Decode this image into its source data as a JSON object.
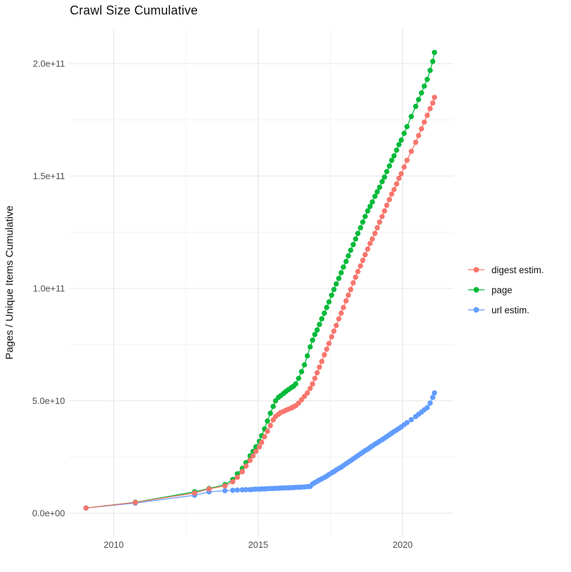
{
  "title": "Crawl Size Cumulative",
  "axes": {
    "y_label": "Pages / Unique Items Cumulative",
    "x_label": "",
    "y_ticks": [
      {
        "label": "0.0e+00",
        "value_e9": 0
      },
      {
        "label": "5.0e+10",
        "value_e9": 50
      },
      {
        "label": "1.0e+11",
        "value_e9": 100
      },
      {
        "label": "1.5e+11",
        "value_e9": 150
      },
      {
        "label": "2.0e+11",
        "value_e9": 200
      }
    ],
    "x_ticks": [
      {
        "label": "2010",
        "value": 2010
      },
      {
        "label": "2015",
        "value": 2015
      },
      {
        "label": "2020",
        "value": 2020
      }
    ],
    "y_minor_e9": [
      25,
      75,
      125,
      175
    ],
    "x_minor": [
      2012.5,
      2017.5
    ]
  },
  "legend": {
    "items": [
      {
        "label": "digest estim.",
        "color": "#F8766D"
      },
      {
        "label": "page",
        "color": "#00BA38"
      },
      {
        "label": "url estim.",
        "color": "#619CFF"
      }
    ]
  },
  "colors": {
    "digest": "#F8766D",
    "page": "#00BA38",
    "url": "#619CFF",
    "grid_major": "#e6e6e6",
    "grid_minor": "#f2f2f2",
    "tick_text": "#4d4d4d",
    "text": "#111111"
  },
  "chart_data": {
    "type": "line",
    "title": "Crawl Size Cumulative",
    "xlabel": "",
    "ylabel": "Pages / Unique Items Cumulative",
    "legend_position": "right",
    "grid": true,
    "y_value_unit": 1000000000,
    "y_value_unit_note": "series values below are in billions (1e9) of pages / unique items",
    "xlim": [
      2008.45,
      2021.75
    ],
    "ylim_e9": [
      -10,
      216
    ],
    "x_years": [
      2009.04,
      2010.75,
      2012.8,
      2013.3,
      2013.85,
      2014.12,
      2014.28,
      2014.45,
      2014.58,
      2014.72,
      2014.82,
      2014.92,
      2015.04,
      2015.12,
      2015.22,
      2015.32,
      2015.42,
      2015.52,
      2015.6,
      2015.7,
      2015.78,
      2015.88,
      2015.96,
      2016.05,
      2016.14,
      2016.22,
      2016.3,
      2016.4,
      2016.5,
      2016.6,
      2016.7,
      2016.8,
      2016.88,
      2016.96,
      2017.04,
      2017.12,
      2017.2,
      2017.29,
      2017.37,
      2017.45,
      2017.54,
      2017.62,
      2017.7,
      2017.79,
      2017.87,
      2017.95,
      2018.04,
      2018.12,
      2018.2,
      2018.29,
      2018.37,
      2018.45,
      2018.54,
      2018.62,
      2018.7,
      2018.79,
      2018.87,
      2018.95,
      2019.04,
      2019.12,
      2019.2,
      2019.29,
      2019.37,
      2019.45,
      2019.54,
      2019.62,
      2019.7,
      2019.79,
      2019.87,
      2019.95,
      2020.05,
      2020.15,
      2020.3,
      2020.45,
      2020.55,
      2020.65,
      2020.75,
      2020.85,
      2020.95,
      2021.04,
      2021.1
    ],
    "series": [
      {
        "name": "digest estim.",
        "color": "#F8766D",
        "values_e9": [
          2.3,
          4.8,
          9,
          10.8,
          12.2,
          14,
          16,
          18.5,
          21,
          23.5,
          25.5,
          27.5,
          29.5,
          31.5,
          34,
          36.5,
          39,
          41.5,
          43,
          44,
          44.8,
          45.3,
          45.8,
          46.3,
          46.8,
          47.3,
          47.8,
          49,
          50.5,
          52,
          53.5,
          55.5,
          57.5,
          60,
          62.5,
          65,
          67.5,
          70.5,
          73,
          75.5,
          78.5,
          81,
          83.5,
          86.5,
          89,
          91.5,
          94.5,
          97,
          99.5,
          102.5,
          105,
          107.5,
          110,
          112.5,
          115,
          117.5,
          120,
          122,
          124.5,
          127,
          129.5,
          132,
          134.5,
          137,
          139.5,
          142,
          144,
          146.5,
          149,
          151,
          154,
          157,
          161,
          165,
          168,
          171,
          174,
          177,
          180,
          182.5,
          185
        ]
      },
      {
        "name": "page",
        "color": "#00BA38",
        "values_e9": [
          2.3,
          4.9,
          9.5,
          11,
          12.7,
          15,
          17.5,
          20,
          22.5,
          25.5,
          27.5,
          29.5,
          32,
          34.5,
          37.5,
          41,
          44.5,
          47.5,
          50,
          51.5,
          52.3,
          53.3,
          54.2,
          55,
          55.8,
          56.5,
          57.5,
          60,
          63,
          66,
          70,
          74,
          77,
          79.5,
          81.5,
          84,
          86.5,
          89,
          91.5,
          94,
          97,
          99.5,
          102,
          104.5,
          107,
          109.5,
          112,
          114.5,
          117,
          119.5,
          122,
          124.5,
          127,
          129.5,
          132,
          134.5,
          136.5,
          138.5,
          141,
          143,
          145,
          147.5,
          149.5,
          152,
          154.5,
          157,
          159,
          161.5,
          164,
          166,
          169,
          172,
          176.5,
          181,
          184,
          187,
          190,
          193,
          197,
          201,
          205
        ]
      },
      {
        "name": "url estim.",
        "color": "#619CFF",
        "values_e9": [
          2.3,
          4.5,
          8,
          9.5,
          10,
          10.2,
          10.3,
          10.4,
          10.5,
          10.5,
          10.6,
          10.7,
          10.7,
          10.8,
          10.8,
          10.9,
          11,
          11,
          11.1,
          11.1,
          11.2,
          11.2,
          11.3,
          11.3,
          11.4,
          11.4,
          11.5,
          11.5,
          11.6,
          11.7,
          11.8,
          11.9,
          13,
          13.6,
          14.2,
          14.8,
          15.3,
          15.9,
          16.5,
          17.2,
          17.9,
          18.5,
          19.2,
          19.9,
          20.5,
          21.2,
          22,
          22.7,
          23.4,
          24.2,
          24.9,
          25.6,
          26.4,
          27.1,
          27.8,
          28.5,
          29.2,
          29.9,
          30.7,
          31.3,
          32,
          32.7,
          33.4,
          34.1,
          34.9,
          35.6,
          36.3,
          37,
          37.7,
          38.4,
          39.4,
          40.3,
          41.6,
          43,
          44,
          45,
          46,
          47,
          49,
          51.5,
          53.5
        ]
      }
    ]
  }
}
